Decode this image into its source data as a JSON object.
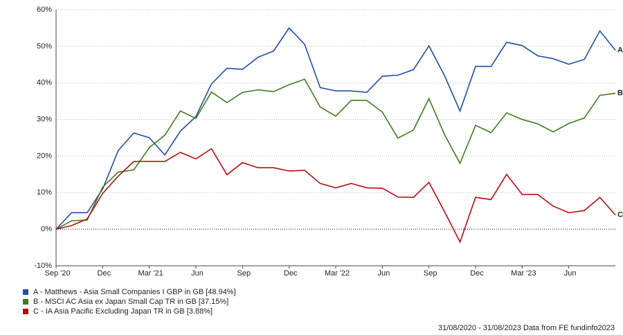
{
  "chart_data": {
    "type": "line",
    "source": "31/08/2020 - 31/08/2023 Data from FE fundinfo2023",
    "x": [
      0,
      1,
      2,
      3,
      4,
      5,
      6,
      7,
      8,
      9,
      10,
      11,
      12,
      13,
      14,
      15,
      16,
      17,
      18,
      19,
      20,
      21,
      22,
      23,
      24,
      25,
      26,
      27,
      28,
      29,
      30,
      31,
      32,
      33,
      34,
      35,
      36
    ],
    "xlim": [
      0,
      36
    ],
    "xticks": [
      {
        "value": 0,
        "label": "Sep '20"
      },
      {
        "value": 3,
        "label": "Dec"
      },
      {
        "value": 6,
        "label": "Mar '21"
      },
      {
        "value": 9,
        "label": "Jun"
      },
      {
        "value": 12,
        "label": "Sep"
      },
      {
        "value": 15,
        "label": "Dec"
      },
      {
        "value": 18,
        "label": "Mar '22"
      },
      {
        "value": 21,
        "label": "Jun"
      },
      {
        "value": 24,
        "label": "Sep"
      },
      {
        "value": 27,
        "label": "Dec"
      },
      {
        "value": 30,
        "label": "Mar '23"
      },
      {
        "value": 33,
        "label": "Jun"
      }
    ],
    "ylim": [
      -10,
      60
    ],
    "yticks": [
      {
        "value": -10,
        "label": "-10%"
      },
      {
        "value": 0,
        "label": "0%"
      },
      {
        "value": 10,
        "label": "10%"
      },
      {
        "value": 20,
        "label": "20%"
      },
      {
        "value": 30,
        "label": "30%"
      },
      {
        "value": 40,
        "label": "40%"
      },
      {
        "value": 50,
        "label": "50%"
      },
      {
        "value": 60,
        "label": "60%"
      }
    ],
    "grid": true,
    "zero_line": true,
    "series": [
      {
        "name": "A - Matthews - Asia Small Companies I GBP in GB [48.94%]",
        "end_label": "A",
        "color": "#1f4ea3",
        "values": [
          0,
          4.5,
          4.5,
          11,
          21.5,
          26.3,
          25,
          20.3,
          26.8,
          30.8,
          39.7,
          44,
          43.7,
          47,
          48.7,
          55,
          50.5,
          38.7,
          37.8,
          37.8,
          37.4,
          41.8,
          42.1,
          43.6,
          50.1,
          42,
          32.3,
          44.5,
          44.5,
          51.1,
          50.2,
          47.4,
          46.6,
          45.1,
          46.4,
          54.2,
          48.94
        ]
      },
      {
        "name": "B - MSCI AC Asia ex Japan Small Cap TR in GB [37.15%]",
        "end_label": "B",
        "color": "#3f7a1c",
        "values": [
          0,
          2.3,
          2.5,
          11.5,
          15.6,
          16.2,
          22.3,
          25.7,
          32.3,
          30.3,
          37.5,
          34.6,
          37.4,
          38.1,
          37.6,
          39.5,
          41,
          33.4,
          30.9,
          35.2,
          35.2,
          32,
          24.9,
          27.1,
          35.7,
          25.9,
          18,
          28.4,
          26.4,
          31.8,
          30,
          28.8,
          26.6,
          28.9,
          30.4,
          36.6,
          37.15
        ]
      },
      {
        "name": "C - IA Asia Pacific Excluding Japan TR in GB [3.88%]",
        "end_label": "C",
        "color": "#b50d0d",
        "values": [
          0,
          1,
          2.8,
          9.8,
          14.5,
          18.5,
          18.5,
          18.5,
          21,
          19.2,
          22,
          14.9,
          18.2,
          16.8,
          16.8,
          15.9,
          16.1,
          12.5,
          11.3,
          12.5,
          11.3,
          11.2,
          8.8,
          8.7,
          12.8,
          4.8,
          -3.5,
          8.7,
          8.1,
          15,
          9.5,
          9.5,
          6.3,
          4.5,
          5.1,
          8.7,
          3.88
        ]
      }
    ]
  }
}
